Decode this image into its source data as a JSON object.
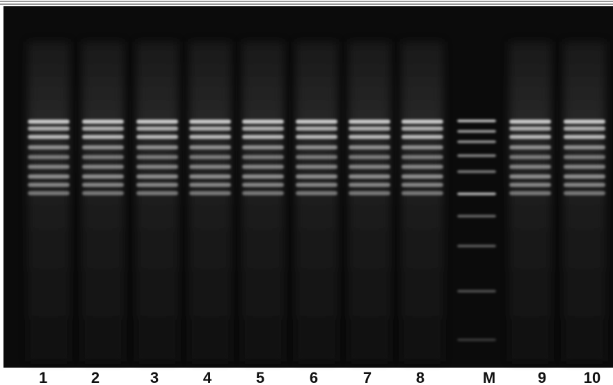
{
  "lanes": [
    {
      "label": "1"
    },
    {
      "label": "2"
    },
    {
      "label": "3"
    },
    {
      "label": "4"
    },
    {
      "label": "5"
    },
    {
      "label": "6"
    },
    {
      "label": "7"
    },
    {
      "label": "8"
    },
    {
      "label": "M"
    },
    {
      "label": "9"
    },
    {
      "label": "10"
    }
  ]
}
